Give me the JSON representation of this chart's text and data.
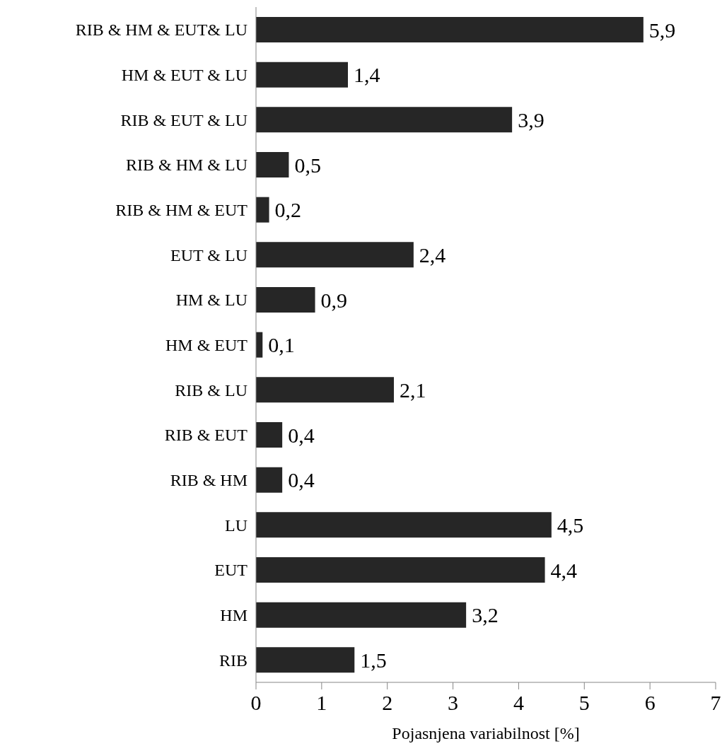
{
  "chart_data": {
    "type": "bar",
    "orientation": "horizontal",
    "xlabel": "Pojasnjena variabilnost [%]",
    "categories": [
      "RIB & HM & EUT& LU",
      "HM & EUT & LU",
      "RIB & EUT & LU",
      "RIB & HM & LU",
      "RIB & HM & EUT",
      "EUT & LU",
      "HM & LU",
      "HM & EUT",
      "RIB & LU",
      "RIB & EUT",
      "RIB & HM",
      "LU",
      "EUT",
      "HM",
      "RIB"
    ],
    "values": [
      5.9,
      1.4,
      3.9,
      0.5,
      0.2,
      2.4,
      0.9,
      0.1,
      2.1,
      0.4,
      0.4,
      4.5,
      4.4,
      3.2,
      1.5
    ],
    "value_labels": [
      "5,9",
      "1,4",
      "3,9",
      "0,5",
      "0,2",
      "2,4",
      "0,9",
      "0,1",
      "2,1",
      "0,4",
      "0,4",
      "4,5",
      "4,4",
      "3,2",
      "1,5"
    ],
    "color": "#262626",
    "xlim": [
      0,
      7
    ],
    "xticks": [
      0,
      1,
      2,
      3,
      4,
      5,
      6,
      7
    ],
    "grid": false,
    "legend": false
  }
}
